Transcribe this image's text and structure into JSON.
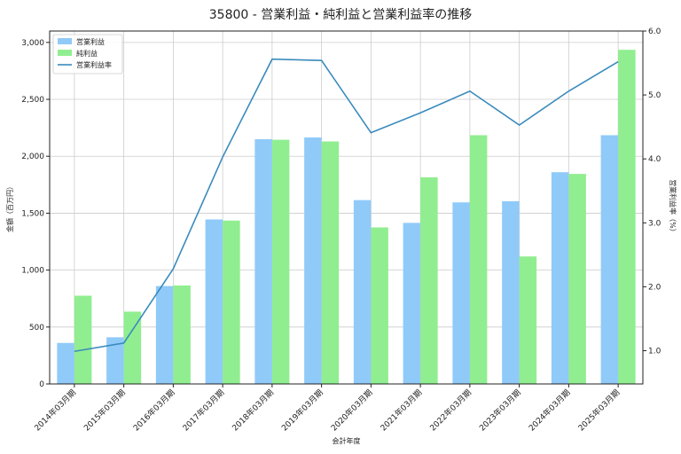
{
  "chart_data": {
    "type": "bar",
    "title": "35800 - 営業利益・純利益と営業利益率の推移",
    "xlabel": "会計年度",
    "ylabel": "金額（百万円）",
    "y2label": "営業利益率（%）",
    "categories": [
      "2014年03月期",
      "2015年03月期",
      "2016年03月期",
      "2017年03月期",
      "2018年03月期",
      "2019年03月期",
      "2020年03月期",
      "2021年03月期",
      "2022年03月期",
      "2023年03月期",
      "2024年03月期",
      "2025年03月期"
    ],
    "ylim": [
      0,
      3100
    ],
    "yticks": [
      0,
      500,
      1000,
      1500,
      2000,
      2500,
      3000
    ],
    "ytick_labels": [
      "0",
      "500",
      "1,000",
      "1,500",
      "2,000",
      "2,500",
      "3,000"
    ],
    "y2lim": [
      0.48,
      6.0
    ],
    "y2ticks": [
      1.0,
      2.0,
      3.0,
      4.0,
      5.0,
      6.0
    ],
    "y2tick_labels": [
      "1.0",
      "2.0",
      "3.0",
      "4.0",
      "5.0",
      "6.0"
    ],
    "grid": true,
    "legend_position": "top-left",
    "series": [
      {
        "name": "営業利益",
        "kind": "bar",
        "axis": "left",
        "color": "#90caf9",
        "values": [
          360,
          410,
          860,
          1445,
          2150,
          2165,
          1615,
          1415,
          1595,
          1605,
          1860,
          2185
        ]
      },
      {
        "name": "純利益",
        "kind": "bar",
        "axis": "left",
        "color": "#90ee90",
        "values": [
          775,
          635,
          865,
          1435,
          2145,
          2130,
          1375,
          1815,
          2185,
          1120,
          1845,
          2935
        ]
      },
      {
        "name": "営業利益率",
        "kind": "line",
        "axis": "right",
        "color": "#3a8bbd",
        "values": [
          0.99,
          1.12,
          2.28,
          4.03,
          5.56,
          5.54,
          4.41,
          4.72,
          5.06,
          4.53,
          5.06,
          5.52
        ]
      }
    ]
  }
}
